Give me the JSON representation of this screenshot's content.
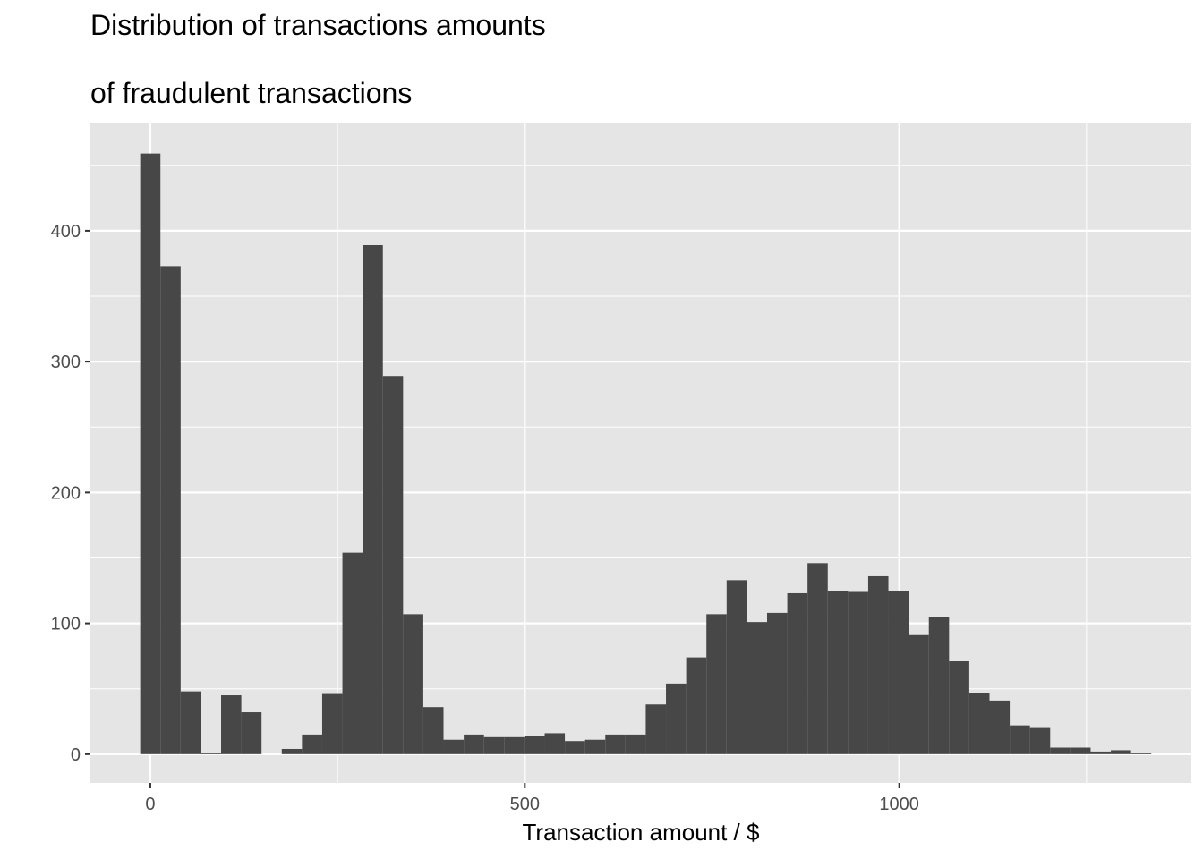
{
  "chart_data": {
    "type": "bar",
    "title_lines": [
      "Distribution of transactions amounts",
      "of fraudulent transactions"
    ],
    "xlabel": "Transaction amount / $",
    "ylabel": "",
    "bin_width": 27,
    "bin_centers": [
      0,
      27,
      54,
      81,
      108,
      135,
      162,
      189,
      216,
      243,
      270,
      297,
      324,
      351,
      378,
      405,
      432,
      459,
      486,
      513,
      540,
      567,
      594,
      621,
      648,
      675,
      702,
      729,
      756,
      783,
      810,
      837,
      864,
      891,
      918,
      945,
      972,
      999,
      1026,
      1053,
      1080,
      1107,
      1134,
      1161,
      1188,
      1215,
      1242,
      1269,
      1296,
      1323,
      1350
    ],
    "values": [
      459,
      373,
      48,
      1,
      45,
      32,
      0,
      4,
      15,
      46,
      154,
      389,
      289,
      107,
      36,
      11,
      15,
      13,
      13,
      14,
      16,
      10,
      11,
      15,
      15,
      38,
      54,
      74,
      107,
      133,
      101,
      108,
      123,
      146,
      125,
      124,
      136,
      125,
      91,
      105,
      71,
      47,
      41,
      22,
      20,
      5,
      5,
      2,
      3,
      1,
      0
    ],
    "xlim": [
      -80,
      1390
    ],
    "ylim": [
      -22,
      482
    ],
    "x_major_ticks": [
      0,
      500,
      1000
    ],
    "x_tick_labels": [
      "0",
      "500",
      "1000"
    ],
    "x_minor_ticks": [
      250,
      750,
      1250
    ],
    "y_major_ticks": [
      0,
      100,
      200,
      300,
      400
    ],
    "y_tick_labels": [
      "0",
      "100",
      "200",
      "300",
      "400"
    ],
    "y_minor_ticks": [
      50,
      150,
      250,
      350,
      450
    ],
    "grid": true,
    "legend": "none",
    "colors": {
      "bar_fill": "#474747",
      "panel_background": "#e5e5e5",
      "grid_line": "#ffffff",
      "tick_label": "#4d4d4d",
      "tick_mark": "#333333",
      "text": "#000000"
    }
  }
}
